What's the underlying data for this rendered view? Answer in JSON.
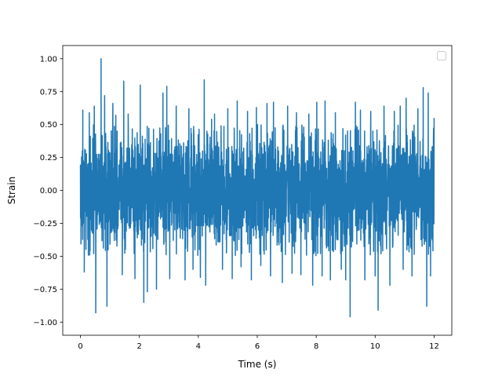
{
  "chart_data": {
    "type": "line",
    "title": "",
    "xlabel": "Time (s)",
    "ylabel": "Strain",
    "xlim": [
      -0.6,
      12.6
    ],
    "ylim": [
      -1.1,
      1.1
    ],
    "x_ticks": [
      0,
      2,
      4,
      6,
      8,
      10,
      12
    ],
    "x_tick_labels": [
      "0",
      "2",
      "4",
      "6",
      "8",
      "10",
      "12"
    ],
    "y_ticks": [
      -1.0,
      -0.75,
      -0.5,
      -0.25,
      0.0,
      0.25,
      0.5,
      0.75,
      1.0
    ],
    "y_tick_labels": [
      "−1.00",
      "−0.75",
      "−0.50",
      "−0.25",
      "0.00",
      "0.25",
      "0.50",
      "0.75",
      "1.00"
    ],
    "grid": false,
    "legend": {
      "placement": "upper-right",
      "entries": []
    },
    "series": [
      {
        "color": "#1f77b4",
        "x_range": [
          0,
          12
        ],
        "appearance": "dense noise filling the band between about -0.5 and 0.5, with spikes",
        "spikes": [
          {
            "x": 0.08,
            "y": 0.61
          },
          {
            "x": 0.13,
            "y": -0.62
          },
          {
            "x": 0.3,
            "y": 0.59
          },
          {
            "x": 0.47,
            "y": 0.64
          },
          {
            "x": 0.52,
            "y": -0.93
          },
          {
            "x": 0.7,
            "y": 1.0
          },
          {
            "x": 0.82,
            "y": 0.72
          },
          {
            "x": 0.9,
            "y": -0.88
          },
          {
            "x": 1.1,
            "y": 0.66
          },
          {
            "x": 1.2,
            "y": 0.57
          },
          {
            "x": 1.42,
            "y": -0.64
          },
          {
            "x": 1.47,
            "y": 0.83
          },
          {
            "x": 1.62,
            "y": 0.58
          },
          {
            "x": 1.85,
            "y": -0.67
          },
          {
            "x": 2.03,
            "y": 0.8
          },
          {
            "x": 2.15,
            "y": -0.85
          },
          {
            "x": 2.27,
            "y": -0.77
          },
          {
            "x": 2.58,
            "y": -0.75
          },
          {
            "x": 2.8,
            "y": 0.74
          },
          {
            "x": 2.93,
            "y": 0.79
          },
          {
            "x": 3.03,
            "y": -0.67
          },
          {
            "x": 3.25,
            "y": 0.64
          },
          {
            "x": 3.55,
            "y": -0.68
          },
          {
            "x": 3.68,
            "y": 0.62
          },
          {
            "x": 3.82,
            "y": -0.6
          },
          {
            "x": 4.07,
            "y": -0.66
          },
          {
            "x": 4.2,
            "y": 0.84
          },
          {
            "x": 4.25,
            "y": -0.72
          },
          {
            "x": 4.45,
            "y": 0.54
          },
          {
            "x": 4.55,
            "y": 0.58
          },
          {
            "x": 4.82,
            "y": -0.6
          },
          {
            "x": 5.0,
            "y": 0.62
          },
          {
            "x": 5.15,
            "y": -0.67
          },
          {
            "x": 5.32,
            "y": 0.68
          },
          {
            "x": 5.45,
            "y": -0.58
          },
          {
            "x": 5.67,
            "y": 0.6
          },
          {
            "x": 5.8,
            "y": -0.68
          },
          {
            "x": 5.97,
            "y": 0.63
          },
          {
            "x": 6.12,
            "y": -0.57
          },
          {
            "x": 6.33,
            "y": 0.66
          },
          {
            "x": 6.45,
            "y": -0.65
          },
          {
            "x": 6.55,
            "y": 0.67
          },
          {
            "x": 6.85,
            "y": -0.7
          },
          {
            "x": 7.03,
            "y": 0.64
          },
          {
            "x": 7.18,
            "y": -0.63
          },
          {
            "x": 7.33,
            "y": 0.59
          },
          {
            "x": 7.48,
            "y": -0.64
          },
          {
            "x": 7.75,
            "y": 0.58
          },
          {
            "x": 7.88,
            "y": -0.72
          },
          {
            "x": 8.02,
            "y": 0.67
          },
          {
            "x": 8.2,
            "y": -0.65
          },
          {
            "x": 8.3,
            "y": 0.68
          },
          {
            "x": 8.48,
            "y": -0.68
          },
          {
            "x": 8.65,
            "y": 0.59
          },
          {
            "x": 8.85,
            "y": -0.6
          },
          {
            "x": 9.0,
            "y": -0.68
          },
          {
            "x": 9.15,
            "y": -0.96
          },
          {
            "x": 9.33,
            "y": 0.67
          },
          {
            "x": 9.5,
            "y": 0.61
          },
          {
            "x": 9.65,
            "y": -0.68
          },
          {
            "x": 9.85,
            "y": 0.6
          },
          {
            "x": 10.0,
            "y": -0.65
          },
          {
            "x": 10.1,
            "y": -0.91
          },
          {
            "x": 10.3,
            "y": 0.64
          },
          {
            "x": 10.5,
            "y": -0.72
          },
          {
            "x": 10.65,
            "y": 0.6
          },
          {
            "x": 10.85,
            "y": 0.64
          },
          {
            "x": 10.95,
            "y": -0.6
          },
          {
            "x": 11.05,
            "y": 0.7
          },
          {
            "x": 11.25,
            "y": -0.65
          },
          {
            "x": 11.45,
            "y": 0.62
          },
          {
            "x": 11.63,
            "y": 0.78
          },
          {
            "x": 11.75,
            "y": -0.88
          },
          {
            "x": 11.8,
            "y": 0.74
          },
          {
            "x": 11.88,
            "y": -0.65
          },
          {
            "x": 12.0,
            "y": 0.55
          }
        ]
      }
    ]
  }
}
